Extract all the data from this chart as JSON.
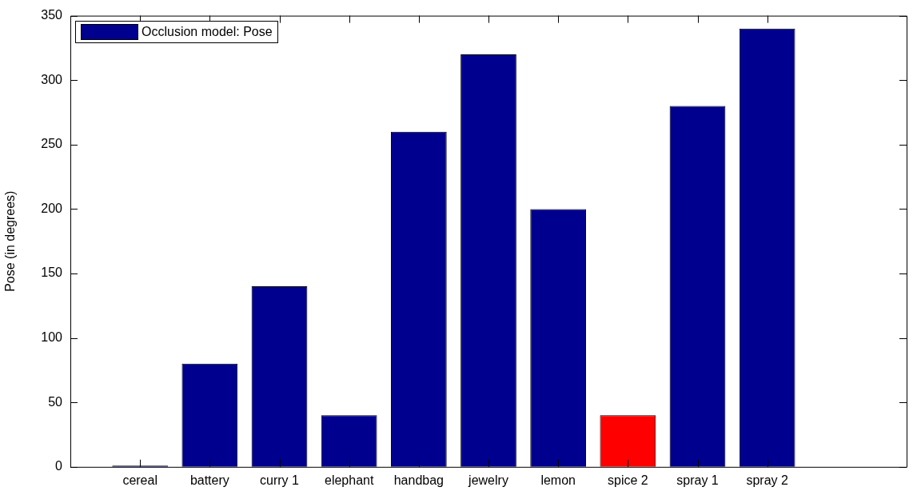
{
  "chart_data": {
    "type": "bar",
    "ylabel": "Pose (in degrees)",
    "categories": [
      "cereal",
      "battery",
      "curry 1",
      "elephant",
      "handbag",
      "jewelry",
      "lemon",
      "spice 2",
      "spray 1",
      "spray 2"
    ],
    "series": [
      {
        "name": "Occlusion model: Pose",
        "color": "#00008f",
        "colors": [
          "#00008f",
          "#00008f",
          "#00008f",
          "#00008f",
          "#00008f",
          "#00008f",
          "#00008f",
          "#ff0000",
          "#00008f",
          "#00008f"
        ],
        "values": [
          1,
          80,
          140,
          40,
          260,
          320,
          200,
          40,
          280,
          340
        ]
      }
    ],
    "ylim": [
      0,
      350
    ],
    "yticks": [
      0,
      50,
      100,
      150,
      200,
      250,
      300,
      350
    ],
    "grid": false,
    "legend": "top left"
  }
}
